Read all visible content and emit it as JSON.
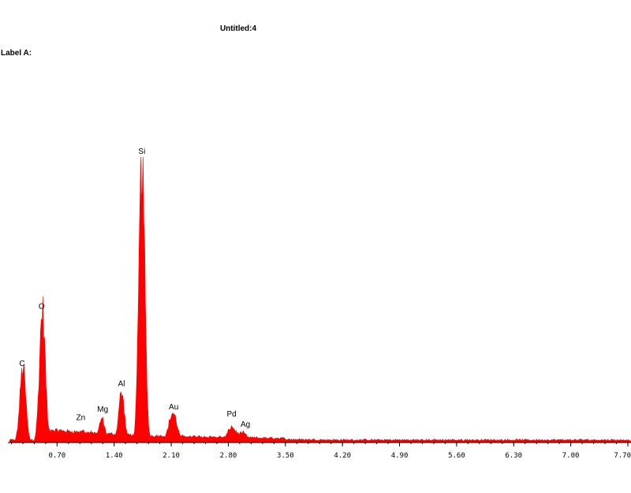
{
  "window": {
    "title": "Untitled:4",
    "label": "Label A:"
  },
  "colors": {
    "spectrum": "#ff0000",
    "axis": "#000000",
    "background": "#ffffff"
  },
  "chart_data": {
    "type": "area",
    "title": "Untitled:4",
    "xlabel": "",
    "ylabel": "",
    "xlim": [
      0,
      7.7
    ],
    "ylim": [
      0,
      1
    ],
    "grid": false,
    "x_ticks": [
      "0.70",
      "1.40",
      "2.10",
      "2.80",
      "3.50",
      "4.20",
      "4.90",
      "5.60",
      "6.30",
      "7.00",
      "7.70"
    ],
    "peaks": [
      {
        "element": "C",
        "energy": 0.28,
        "intensity": 0.26
      },
      {
        "element": "O",
        "energy": 0.52,
        "intensity": 0.46
      },
      {
        "element": "Zn",
        "energy": 1.01,
        "intensity": 0.04
      },
      {
        "element": "Mg",
        "energy": 1.25,
        "intensity": 0.08
      },
      {
        "element": "Al",
        "energy": 1.49,
        "intensity": 0.17
      },
      {
        "element": "Si",
        "energy": 1.74,
        "intensity": 1.0
      },
      {
        "element": "Au",
        "energy": 2.12,
        "intensity": 0.1
      },
      {
        "element": "Pd",
        "energy": 2.84,
        "intensity": 0.05
      },
      {
        "element": "Ag",
        "energy": 2.98,
        "intensity": 0.03
      }
    ]
  }
}
